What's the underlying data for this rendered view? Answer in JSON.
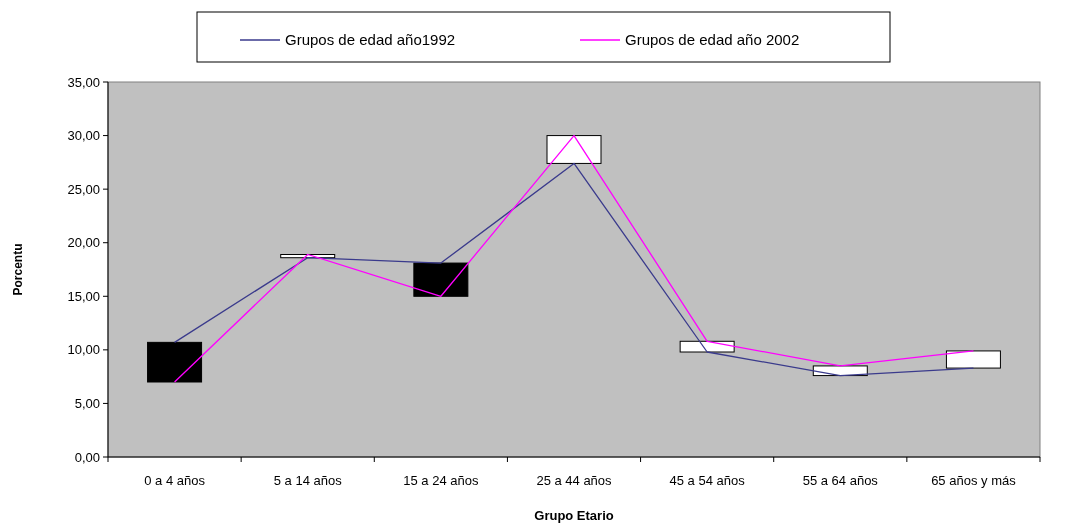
{
  "chart_data": {
    "type": "line",
    "xlabel": "Grupo Etario",
    "ylabel": "Porcentu",
    "categories": [
      "0 a 4 años",
      "5 a 14 años",
      "15 a 24 años",
      "25 a 44 años",
      "45 a 54 años",
      "55 a 64 años",
      "65 años y más"
    ],
    "series": [
      {
        "type": "bar",
        "base": [
          10.7,
          18.6,
          18.1,
          27.4,
          9.8,
          7.6,
          8.3
        ],
        "values": [
          -3.7,
          0.3,
          -3.1,
          2.6,
          1.0,
          0.9,
          1.6
        ],
        "colors": [
          "#000000",
          "#ffffff",
          "#000000",
          "#ffffff",
          "#ffffff",
          "#ffffff",
          "#ffffff"
        ]
      },
      {
        "name": "Grupos de edad año1992",
        "color": "#3a3a8c",
        "values": [
          10.7,
          18.6,
          18.1,
          27.4,
          9.8,
          7.6,
          8.3
        ]
      },
      {
        "name": "Grupos de edad año 2002",
        "color": "#ff00ff",
        "values": [
          7.0,
          18.9,
          15.0,
          30.0,
          10.8,
          8.5,
          9.9
        ]
      }
    ],
    "ylim": [
      0,
      35
    ],
    "yticks": [
      {
        "value": 0,
        "label": "0,00"
      },
      {
        "value": 5,
        "label": "5,00"
      },
      {
        "value": 10,
        "label": "10,00"
      },
      {
        "value": 15,
        "label": "15,00"
      },
      {
        "value": 20,
        "label": "20,00"
      },
      {
        "value": 25,
        "label": "25,00"
      },
      {
        "value": 30,
        "label": "30,00"
      },
      {
        "value": 35,
        "label": "35,00"
      }
    ],
    "grid": false,
    "legend": "top",
    "marker": "none",
    "line_style": "solid"
  }
}
